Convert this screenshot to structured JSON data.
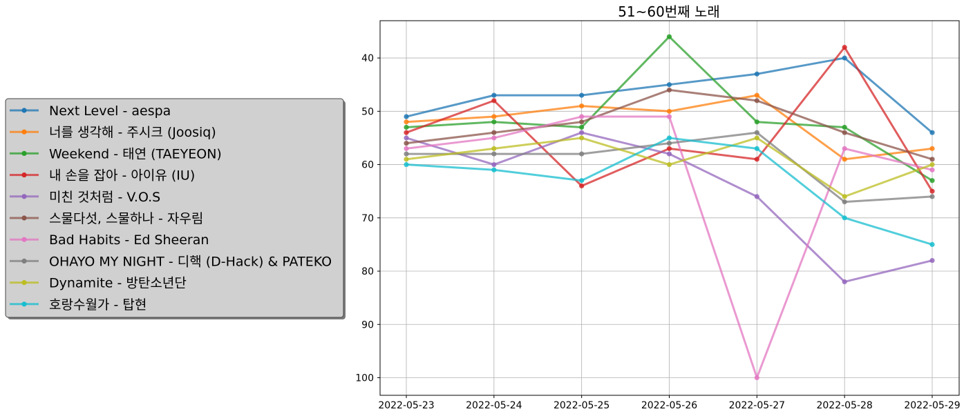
{
  "chart_data": {
    "type": "line",
    "title": "51~60번째 노래",
    "xlabel": "",
    "ylabel": "",
    "x": [
      "2022-05-23",
      "2022-05-24",
      "2022-05-25",
      "2022-05-26",
      "2022-05-27",
      "2022-05-28",
      "2022-05-29"
    ],
    "ylim": [
      103.3,
      33.0
    ],
    "y_inverted": true,
    "y_ticks": [
      40,
      50,
      60,
      70,
      80,
      90,
      100
    ],
    "grid": true,
    "legend_position": "outside-left",
    "series": [
      {
        "name": "Next Level - aespa",
        "color": "#1f77b4",
        "values": [
          51,
          47,
          47,
          45,
          43,
          40,
          54
        ]
      },
      {
        "name": "너를 생각해 - 주시크 (Joosiq)",
        "color": "#ff7f0e",
        "values": [
          52,
          51,
          49,
          50,
          47,
          59,
          57
        ]
      },
      {
        "name": "Weekend - 태연 (TAEYEON)",
        "color": "#2ca02c",
        "values": [
          53,
          52,
          53,
          36,
          52,
          53,
          63
        ]
      },
      {
        "name": "내 손을 잡아 - 아이유 (IU)",
        "color": "#d62728",
        "values": [
          54,
          48,
          64,
          57,
          59,
          38,
          65
        ]
      },
      {
        "name": "미친 것처럼 - V.O.S",
        "color": "#9467bd",
        "values": [
          55,
          60,
          54,
          58,
          66,
          82,
          78
        ]
      },
      {
        "name": "스물다섯, 스물하나 - 자우림",
        "color": "#8c564b",
        "values": [
          56,
          54,
          52,
          46,
          48,
          54,
          59
        ]
      },
      {
        "name": "Bad Habits - Ed Sheeran",
        "color": "#e377c2",
        "values": [
          57,
          55,
          51,
          51,
          100,
          57,
          61
        ]
      },
      {
        "name": "OHAYO MY NIGHT - 디핵 (D-Hack) & PATEKO",
        "color": "#7f7f7f",
        "values": [
          58,
          58,
          58,
          56,
          54,
          67,
          66
        ]
      },
      {
        "name": "Dynamite - 방탄소년단",
        "color": "#bcbd22",
        "values": [
          59,
          57,
          55,
          60,
          55,
          66,
          60
        ]
      },
      {
        "name": "호랑수월가 - 탑현",
        "color": "#17becf",
        "values": [
          60,
          61,
          63,
          55,
          57,
          70,
          75
        ]
      }
    ]
  }
}
